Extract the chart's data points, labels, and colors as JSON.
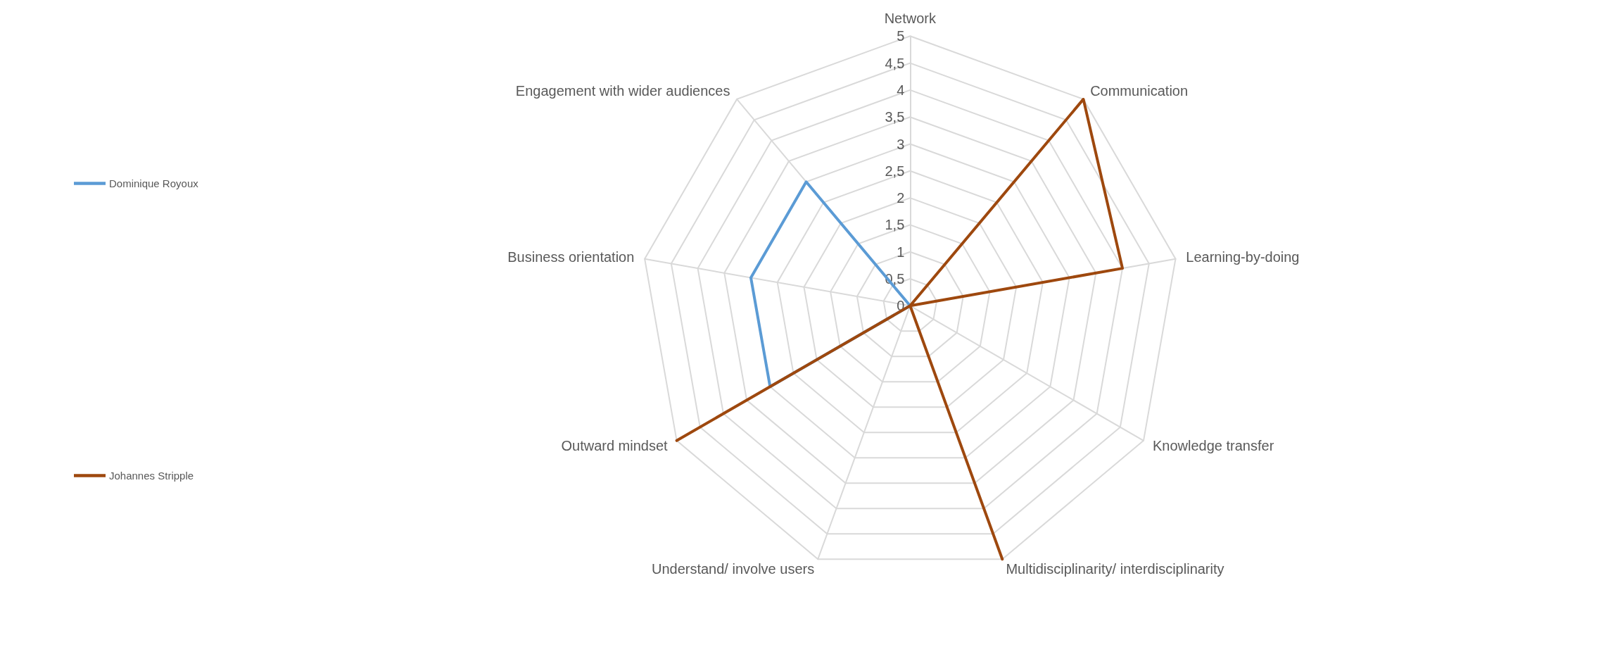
{
  "chart_data": {
    "type": "radar",
    "categories": [
      "Network",
      "Communication",
      "Learning-by-doing",
      "Knowledge transfer",
      "Multidisciplinarity/ interdisciplinarity",
      "Understand/ involve users",
      "Outward mindset",
      "Business orientation",
      "Engagement with wider audiences"
    ],
    "series": [
      {
        "name": "Dominique Royoux",
        "color": "#5b9bd5",
        "values": [
          0,
          0,
          0,
          0,
          0,
          0,
          3,
          3,
          3
        ]
      },
      {
        "name": "Johannes Stripple",
        "color": "#9e480e",
        "values": [
          0,
          5,
          4,
          0,
          5,
          0,
          5,
          0,
          0
        ]
      }
    ],
    "ylim": [
      0,
      5
    ],
    "yticks": [
      0,
      {
        "value": 0.5,
        "label": "0,5"
      },
      1,
      {
        "value": 1.5,
        "label": "1,5"
      },
      2,
      {
        "value": 2.5,
        "label": "2,5"
      },
      3,
      {
        "value": 3.5,
        "label": "3,5"
      },
      4,
      {
        "value": 4.5,
        "label": "4,5"
      },
      5
    ],
    "grid": true,
    "legend": "left",
    "marker": "none",
    "line_style": "solid"
  }
}
